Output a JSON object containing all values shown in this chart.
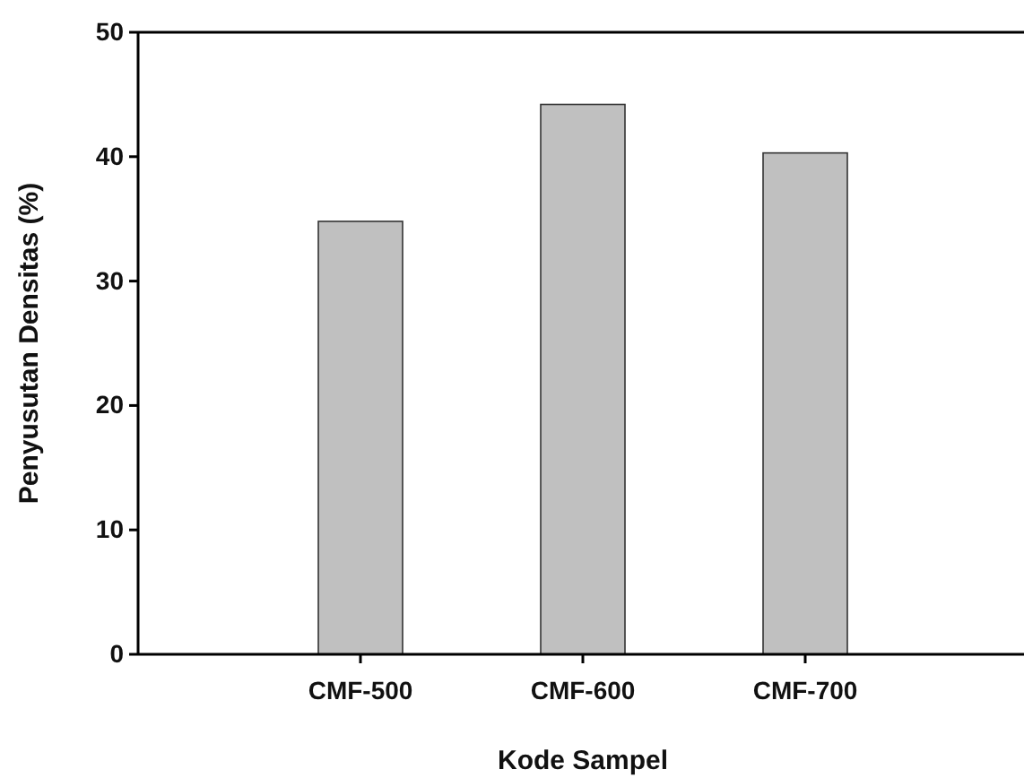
{
  "chart_data": {
    "type": "bar",
    "xlabel": "Kode Sampel",
    "ylabel": "Penyusutan Densitas (%)",
    "categories": [
      "CMF-500",
      "CMF-600",
      "CMF-700"
    ],
    "values": [
      34.8,
      44.2,
      40.3
    ],
    "color": "#c0c0c0",
    "ylim": [
      0,
      50
    ],
    "yticks": [
      0,
      10,
      20,
      30,
      40,
      50
    ],
    "grid": false
  }
}
